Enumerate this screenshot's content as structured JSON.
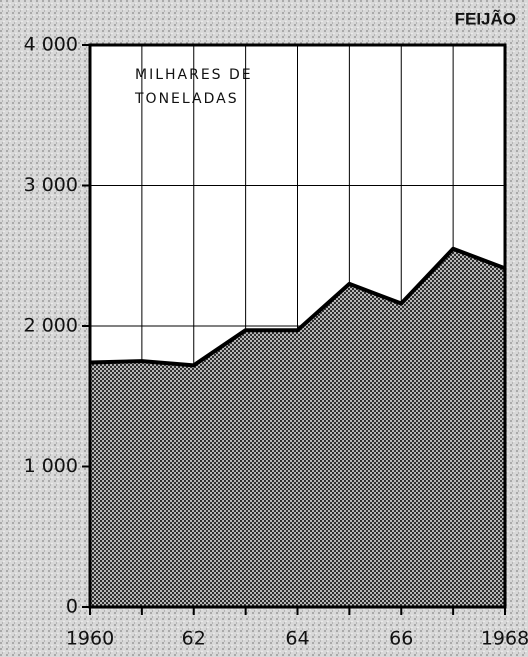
{
  "chart_data": {
    "type": "area",
    "title": "FEIJÃO",
    "annotation": [
      "MILHARES DE",
      "TONELADAS"
    ],
    "x": [
      1960,
      1961,
      1962,
      1963,
      1964,
      1965,
      1966,
      1967,
      1968
    ],
    "values": [
      1740,
      1750,
      1720,
      1970,
      1970,
      2300,
      2160,
      2550,
      2410
    ],
    "xlim": [
      1960,
      1968
    ],
    "xticks": [
      1960,
      {
        "value": 1962,
        "label": "62"
      },
      {
        "value": 1964,
        "label": "64"
      },
      {
        "value": 1966,
        "label": "66"
      },
      1968
    ],
    "ylim": [
      0,
      4000
    ],
    "yticks": [
      {
        "value": 0,
        "label": "0"
      },
      {
        "value": 1000,
        "label": "1 000"
      },
      {
        "value": 2000,
        "label": "2 000"
      },
      {
        "value": 3000,
        "label": "3 000"
      },
      {
        "value": 4000,
        "label": "4 000"
      }
    ],
    "grid": true
  }
}
